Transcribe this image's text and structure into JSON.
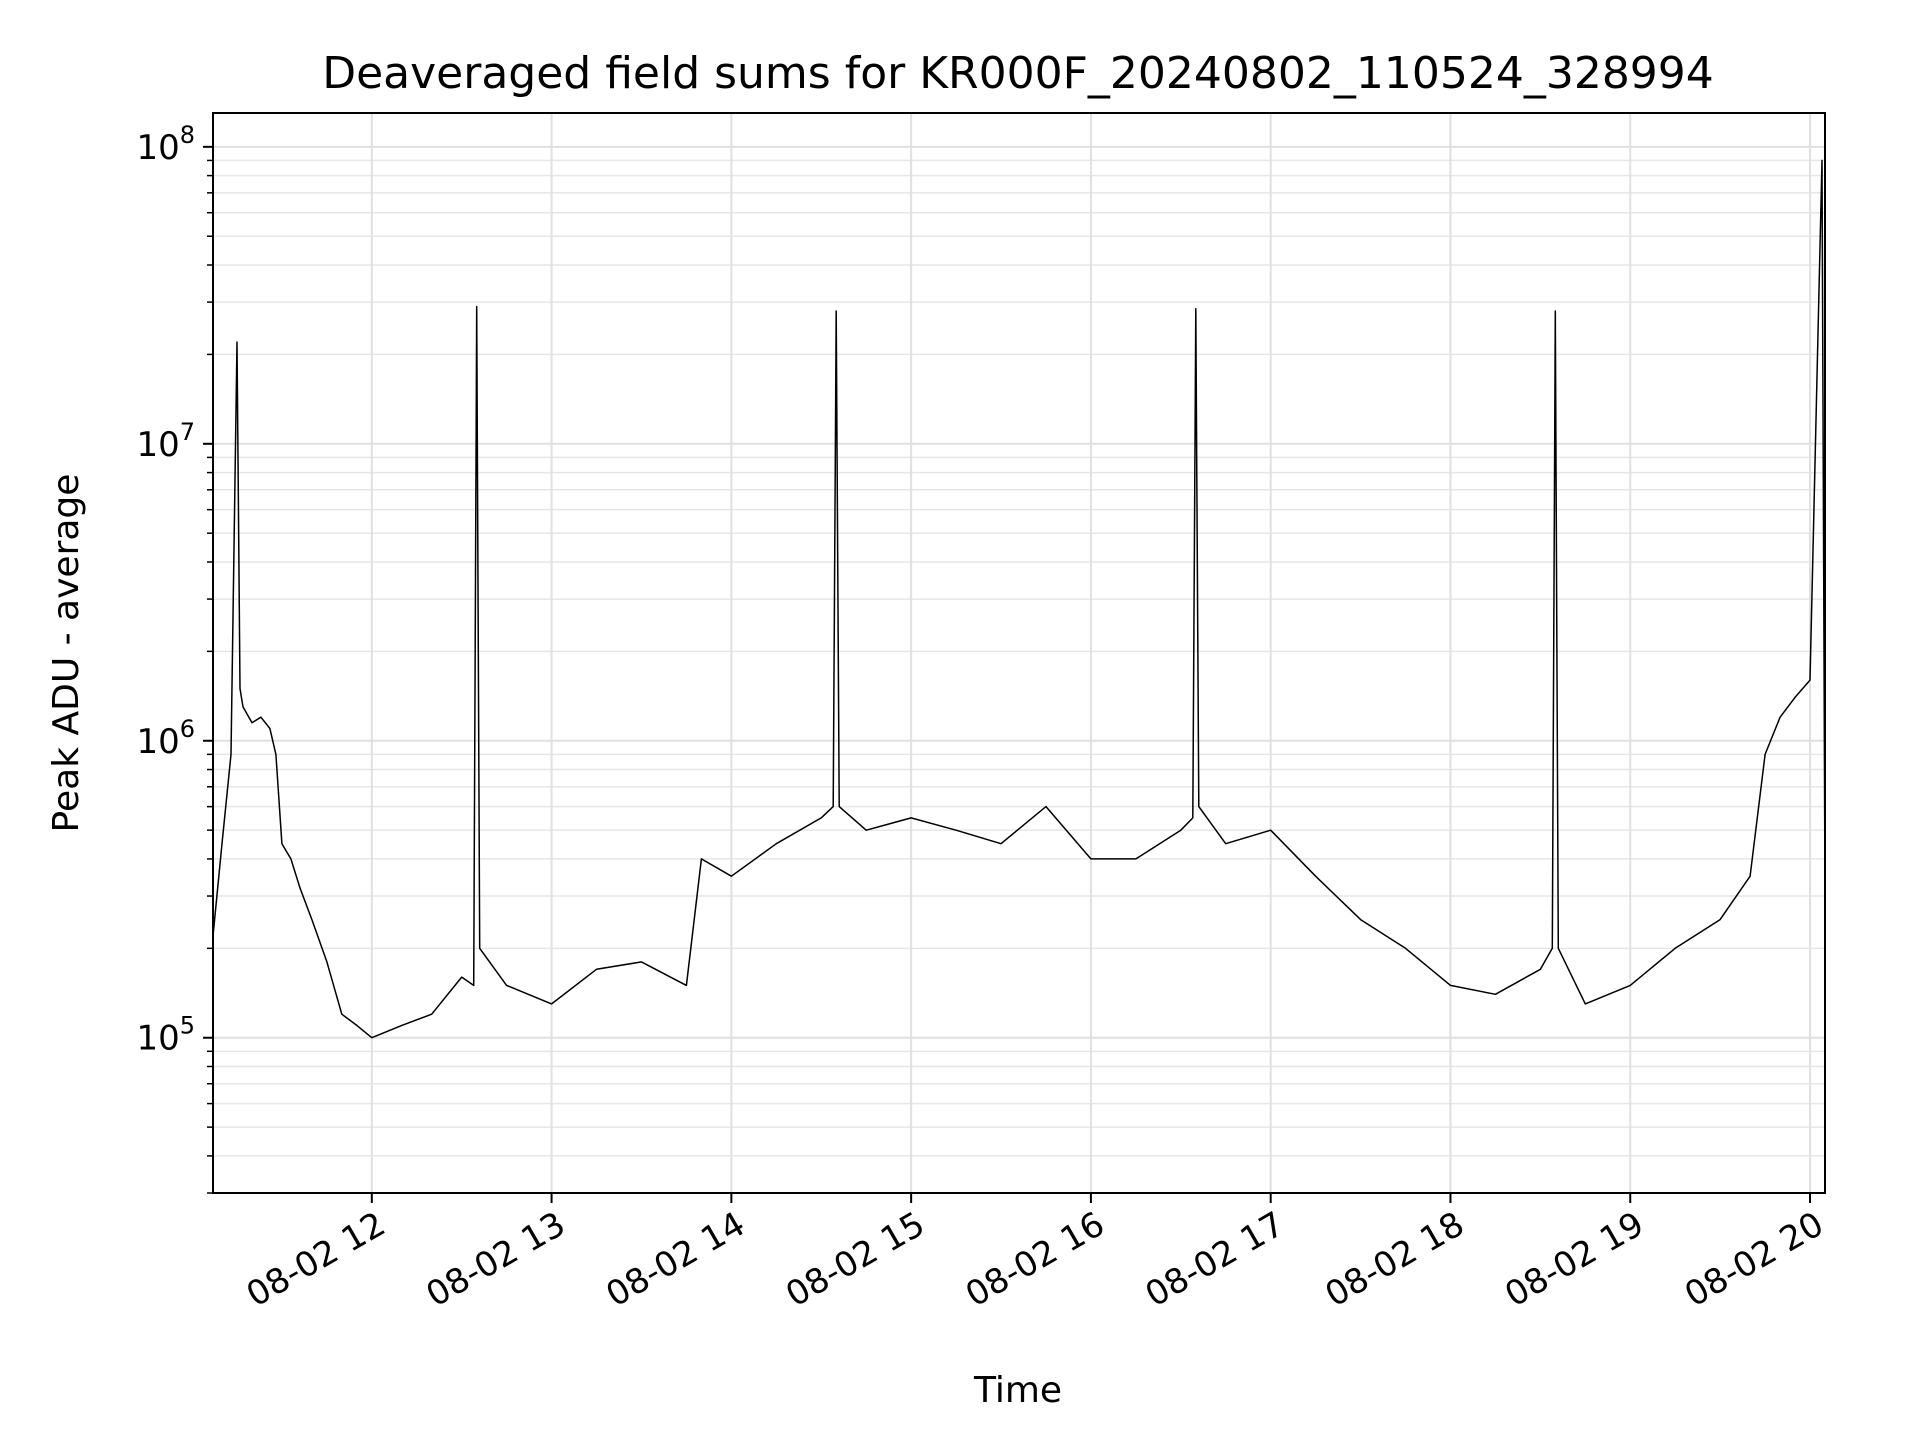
{
  "chart_data": {
    "type": "line",
    "title": "Deaveraged field sums for KR000F_20240802_110524_328994",
    "xlabel": "Time",
    "ylabel": "Peak ADU - average",
    "yscale": "log",
    "ylim": [
      30000,
      130000000
    ],
    "xlim": [
      "2024-08-02 11:07",
      "2024-08-02 20:05"
    ],
    "grid": true,
    "legend": "none",
    "line_color": "#000000",
    "x_ticks": [
      {
        "value": "2024-08-02 12:00",
        "label": "08-02 12"
      },
      {
        "value": "2024-08-02 13:00",
        "label": "08-02 13"
      },
      {
        "value": "2024-08-02 14:00",
        "label": "08-02 14"
      },
      {
        "value": "2024-08-02 15:00",
        "label": "08-02 15"
      },
      {
        "value": "2024-08-02 16:00",
        "label": "08-02 16"
      },
      {
        "value": "2024-08-02 17:00",
        "label": "08-02 17"
      },
      {
        "value": "2024-08-02 18:00",
        "label": "08-02 18"
      },
      {
        "value": "2024-08-02 19:00",
        "label": "08-02 19"
      },
      {
        "value": "2024-08-02 20:00",
        "label": "08-02 20"
      }
    ],
    "y_ticks": [
      {
        "value": 100000,
        "base": "10",
        "exp": "5"
      },
      {
        "value": 1000000,
        "base": "10",
        "exp": "6"
      },
      {
        "value": 10000000,
        "base": "10",
        "exp": "7"
      },
      {
        "value": 100000000,
        "base": "10",
        "exp": "8"
      }
    ],
    "series": [
      {
        "x": [
          "2024-08-02 11:07",
          "2024-08-02 11:10",
          "2024-08-02 11:13",
          "2024-08-02 11:15",
          "2024-08-02 11:16",
          "2024-08-02 11:17",
          "2024-08-02 11:20",
          "2024-08-02 11:23",
          "2024-08-02 11:26",
          "2024-08-02 11:28",
          "2024-08-02 11:30",
          "2024-08-02 11:33",
          "2024-08-02 11:36",
          "2024-08-02 11:40",
          "2024-08-02 11:45",
          "2024-08-02 11:50",
          "2024-08-02 11:55",
          "2024-08-02 12:00",
          "2024-08-02 12:10",
          "2024-08-02 12:20",
          "2024-08-02 12:30",
          "2024-08-02 12:34",
          "2024-08-02 12:35",
          "2024-08-02 12:36",
          "2024-08-02 12:45",
          "2024-08-02 13:00",
          "2024-08-02 13:15",
          "2024-08-02 13:30",
          "2024-08-02 13:45",
          "2024-08-02 13:50",
          "2024-08-02 14:00",
          "2024-08-02 14:15",
          "2024-08-02 14:30",
          "2024-08-02 14:34",
          "2024-08-02 14:35",
          "2024-08-02 14:36",
          "2024-08-02 14:45",
          "2024-08-02 15:00",
          "2024-08-02 15:15",
          "2024-08-02 15:30",
          "2024-08-02 15:45",
          "2024-08-02 16:00",
          "2024-08-02 16:15",
          "2024-08-02 16:30",
          "2024-08-02 16:34",
          "2024-08-02 16:35",
          "2024-08-02 16:36",
          "2024-08-02 16:45",
          "2024-08-02 17:00",
          "2024-08-02 17:15",
          "2024-08-02 17:30",
          "2024-08-02 17:45",
          "2024-08-02 18:00",
          "2024-08-02 18:15",
          "2024-08-02 18:30",
          "2024-08-02 18:34",
          "2024-08-02 18:35",
          "2024-08-02 18:36",
          "2024-08-02 18:45",
          "2024-08-02 19:00",
          "2024-08-02 19:15",
          "2024-08-02 19:30",
          "2024-08-02 19:40",
          "2024-08-02 19:45",
          "2024-08-02 19:50",
          "2024-08-02 19:55",
          "2024-08-02 20:00",
          "2024-08-02 20:04",
          "2024-08-02 20:05"
        ],
        "y": [
          220000,
          450000,
          900000,
          22000000,
          1500000,
          1300000,
          1150000,
          1200000,
          1100000,
          900000,
          450000,
          400000,
          320000,
          250000,
          180000,
          120000,
          110000,
          100000,
          110000,
          120000,
          160000,
          150000,
          29000000,
          200000,
          150000,
          130000,
          170000,
          180000,
          150000,
          400000,
          350000,
          450000,
          550000,
          600000,
          28000000,
          600000,
          500000,
          550000,
          500000,
          450000,
          600000,
          400000,
          400000,
          500000,
          550000,
          28500000,
          600000,
          450000,
          500000,
          350000,
          250000,
          200000,
          150000,
          140000,
          170000,
          200000,
          28000000,
          200000,
          130000,
          150000,
          200000,
          250000,
          350000,
          900000,
          1200000,
          1400000,
          1600000,
          90000000,
          300000
        ]
      }
    ]
  }
}
